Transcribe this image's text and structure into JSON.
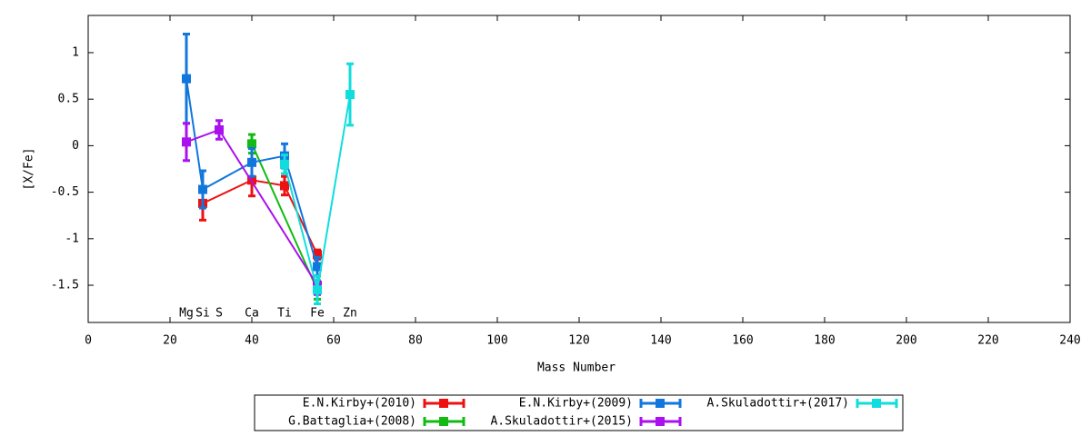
{
  "chart_data": {
    "type": "line",
    "xlabel": "Mass Number",
    "ylabel": "[X/Fe]",
    "xlim": [
      0,
      240
    ],
    "ylim": [
      -1.9,
      1.4
    ],
    "xticks": [
      0,
      20,
      40,
      60,
      80,
      100,
      120,
      140,
      160,
      180,
      200,
      220,
      240
    ],
    "yticks": [
      -1.5,
      -1,
      -0.5,
      0,
      0.5,
      1
    ],
    "series": [
      {
        "name": "E.N.Kirby+(2010)",
        "color": "#ee1111",
        "x": [
          28,
          40,
          48,
          56
        ],
        "values": [
          -0.62,
          -0.37,
          -0.43,
          -1.17
        ],
        "errors": [
          0.18,
          0.17,
          0.1,
          0.05
        ]
      },
      {
        "name": "G.Battaglia+(2008)",
        "color": "#11bb11",
        "x": [
          40,
          56
        ],
        "values": [
          0.02,
          -1.55
        ],
        "errors": [
          0.1,
          0.1
        ]
      },
      {
        "name": "E.N.Kirby+(2009)",
        "color": "#1177dd",
        "x": [
          24,
          28,
          40,
          48,
          56
        ],
        "values": [
          0.72,
          -0.47,
          -0.18,
          -0.11,
          -1.3
        ],
        "errors": [
          0.48,
          0.2,
          0.15,
          0.13,
          0.1
        ]
      },
      {
        "name": "A.Skuladottir+(2015)",
        "color": "#aa11ee",
        "x": [
          24,
          32,
          56
        ],
        "values": [
          0.04,
          0.17,
          -1.5
        ],
        "errors": [
          0.2,
          0.1,
          0.1
        ]
      },
      {
        "name": "A.Skuladottir+(2017)",
        "color": "#11dddd",
        "x": [
          48,
          56,
          64
        ],
        "values": [
          -0.2,
          -1.55,
          0.55
        ],
        "errors": [
          0.1,
          0.15,
          0.33
        ]
      }
    ],
    "annotations": [
      {
        "text": "Mg",
        "x": 24,
        "y": -1.8
      },
      {
        "text": "Si",
        "x": 28,
        "y": -1.8
      },
      {
        "text": "S",
        "x": 32,
        "y": -1.8
      },
      {
        "text": "Ca",
        "x": 40,
        "y": -1.8
      },
      {
        "text": "Ti",
        "x": 48,
        "y": -1.8
      },
      {
        "text": "Fe",
        "x": 56,
        "y": -1.8
      },
      {
        "text": "Zn",
        "x": 64,
        "y": -1.8
      }
    ]
  }
}
